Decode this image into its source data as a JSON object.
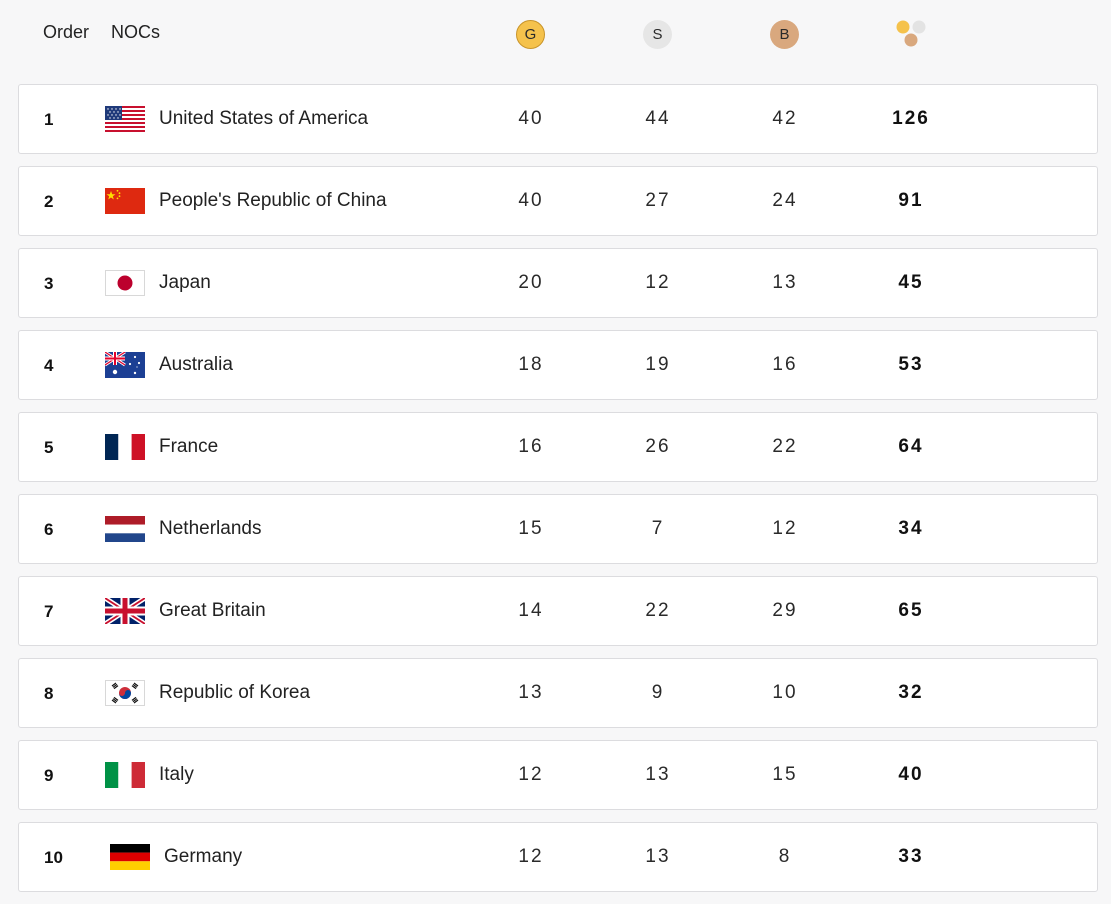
{
  "header": {
    "order_label": "Order",
    "nocs_label": "NOCs",
    "gold_label": "G",
    "silver_label": "S",
    "bronze_label": "B",
    "total_icon": "total-medals-icon"
  },
  "colors": {
    "gold": "#f5c24c",
    "silver": "#e6e6e6",
    "bronze": "#d9a87e",
    "row_bg": "#ffffff",
    "page_bg": "#f7f7f8"
  },
  "rows": [
    {
      "rank": "1",
      "noc": "United States of America",
      "flag": "usa-flag",
      "gold": "40",
      "silver": "44",
      "bronze": "42",
      "total": "126"
    },
    {
      "rank": "2",
      "noc": "People's Republic of China",
      "flag": "china-flag",
      "gold": "40",
      "silver": "27",
      "bronze": "24",
      "total": "91"
    },
    {
      "rank": "3",
      "noc": "Japan",
      "flag": "japan-flag",
      "gold": "20",
      "silver": "12",
      "bronze": "13",
      "total": "45"
    },
    {
      "rank": "4",
      "noc": "Australia",
      "flag": "australia-flag",
      "gold": "18",
      "silver": "19",
      "bronze": "16",
      "total": "53"
    },
    {
      "rank": "5",
      "noc": "France",
      "flag": "france-flag",
      "gold": "16",
      "silver": "26",
      "bronze": "22",
      "total": "64"
    },
    {
      "rank": "6",
      "noc": "Netherlands",
      "flag": "netherlands-flag",
      "gold": "15",
      "silver": "7",
      "bronze": "12",
      "total": "34"
    },
    {
      "rank": "7",
      "noc": "Great Britain",
      "flag": "great-britain-flag",
      "gold": "14",
      "silver": "22",
      "bronze": "29",
      "total": "65"
    },
    {
      "rank": "8",
      "noc": "Republic of Korea",
      "flag": "korea-flag",
      "gold": "13",
      "silver": "9",
      "bronze": "10",
      "total": "32"
    },
    {
      "rank": "9",
      "noc": "Italy",
      "flag": "italy-flag",
      "gold": "12",
      "silver": "13",
      "bronze": "15",
      "total": "40"
    },
    {
      "rank": "10",
      "noc": "Germany",
      "flag": "germany-flag",
      "gold": "12",
      "silver": "13",
      "bronze": "8",
      "total": "33"
    }
  ]
}
